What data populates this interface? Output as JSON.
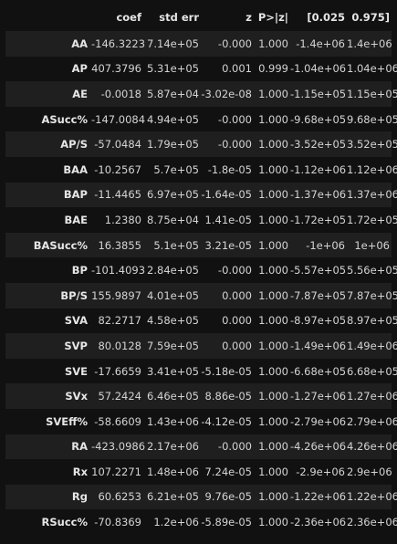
{
  "table": {
    "columns": [
      "",
      "coef",
      "std err",
      "z",
      "P>|z|",
      "[0.025",
      "0.975]"
    ],
    "rows": [
      {
        "label": "AA",
        "values": [
          "-146.3223",
          "7.14e+05",
          "-0.000",
          "1.000",
          "-1.4e+06",
          "1.4e+06"
        ]
      },
      {
        "label": "AP",
        "values": [
          "407.3796",
          "5.31e+05",
          "0.001",
          "0.999",
          "-1.04e+06",
          "1.04e+06"
        ]
      },
      {
        "label": "AE",
        "values": [
          "-0.0018",
          "5.87e+04",
          "-3.02e-08",
          "1.000",
          "-1.15e+05",
          "1.15e+05"
        ]
      },
      {
        "label": "ASucc%",
        "values": [
          "-147.0084",
          "4.94e+05",
          "-0.000",
          "1.000",
          "-9.68e+05",
          "9.68e+05"
        ]
      },
      {
        "label": "AP/S",
        "values": [
          "-57.0484",
          "1.79e+05",
          "-0.000",
          "1.000",
          "-3.52e+05",
          "3.52e+05"
        ]
      },
      {
        "label": "BAA",
        "values": [
          "-10.2567",
          "5.7e+05",
          "-1.8e-05",
          "1.000",
          "-1.12e+06",
          "1.12e+06"
        ]
      },
      {
        "label": "BAP",
        "values": [
          "-11.4465",
          "6.97e+05",
          "-1.64e-05",
          "1.000",
          "-1.37e+06",
          "1.37e+06"
        ]
      },
      {
        "label": "BAE",
        "values": [
          "1.2380",
          "8.75e+04",
          "1.41e-05",
          "1.000",
          "-1.72e+05",
          "1.72e+05"
        ]
      },
      {
        "label": "BASucc%",
        "values": [
          "16.3855",
          "5.1e+05",
          "3.21e-05",
          "1.000",
          "-1e+06",
          "1e+06"
        ]
      },
      {
        "label": "BP",
        "values": [
          "-101.4093",
          "2.84e+05",
          "-0.000",
          "1.000",
          "-5.57e+05",
          "5.56e+05"
        ]
      },
      {
        "label": "BP/S",
        "values": [
          "155.9897",
          "4.01e+05",
          "0.000",
          "1.000",
          "-7.87e+05",
          "7.87e+05"
        ]
      },
      {
        "label": "SVA",
        "values": [
          "82.2717",
          "4.58e+05",
          "0.000",
          "1.000",
          "-8.97e+05",
          "8.97e+05"
        ]
      },
      {
        "label": "SVP",
        "values": [
          "80.0128",
          "7.59e+05",
          "0.000",
          "1.000",
          "-1.49e+06",
          "1.49e+06"
        ]
      },
      {
        "label": "SVE",
        "values": [
          "-17.6659",
          "3.41e+05",
          "-5.18e-05",
          "1.000",
          "-6.68e+05",
          "6.68e+05"
        ]
      },
      {
        "label": "SVx",
        "values": [
          "57.2424",
          "6.46e+05",
          "8.86e-05",
          "1.000",
          "-1.27e+06",
          "1.27e+06"
        ]
      },
      {
        "label": "SVEff%",
        "values": [
          "-58.6609",
          "1.43e+06",
          "-4.12e-05",
          "1.000",
          "-2.79e+06",
          "2.79e+06"
        ]
      },
      {
        "label": "RA",
        "values": [
          "-423.0986",
          "2.17e+06",
          "-0.000",
          "1.000",
          "-4.26e+06",
          "4.26e+06"
        ]
      },
      {
        "label": "Rx",
        "values": [
          "107.2271",
          "1.48e+06",
          "7.24e-05",
          "1.000",
          "-2.9e+06",
          "2.9e+06"
        ]
      },
      {
        "label": "Rg",
        "values": [
          "60.6253",
          "6.21e+05",
          "9.76e-05",
          "1.000",
          "-1.22e+06",
          "1.22e+06"
        ]
      },
      {
        "label": "RSucc%",
        "values": [
          "-70.8369",
          "1.2e+06",
          "-5.89e-05",
          "1.000",
          "-2.36e+06",
          "2.36e+06"
        ]
      }
    ]
  }
}
